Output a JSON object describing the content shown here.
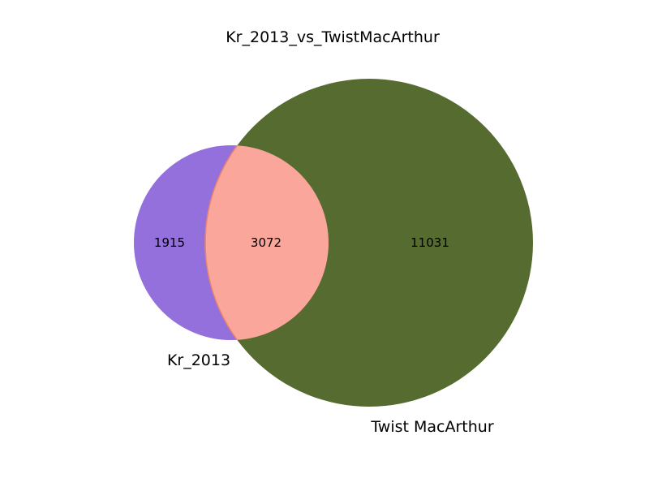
{
  "diagram": {
    "type": "venn2",
    "title": "Kr_2013_vs_TwistMacArthur",
    "sets": [
      {
        "label": "Kr_2013",
        "only_count": "1915",
        "color": "#9370db"
      },
      {
        "label": "Twist MacArthur",
        "only_count": "11031",
        "color": "#556b2f"
      }
    ],
    "intersection": {
      "count": "3072",
      "color": "#fa8072",
      "border_color": "#e9836f"
    }
  }
}
